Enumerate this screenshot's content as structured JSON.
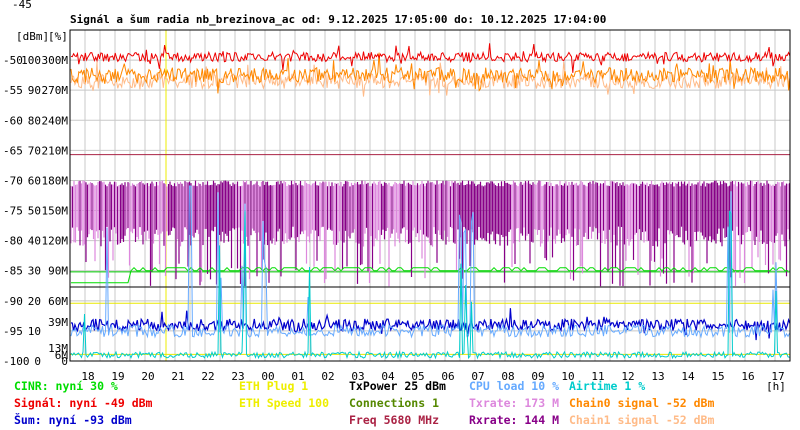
{
  "chart_data": {
    "type": "line",
    "title": "Signál a šum radia nb_brezinova_ac od: 9.12.2025 17:05:00 do: 10.12.2025 17:04:00",
    "unit_labels": [
      "[dBm]",
      "[%]"
    ],
    "x_unit": "[h]",
    "x_ticks": [
      "18",
      "19",
      "20",
      "21",
      "22",
      "23",
      "00",
      "01",
      "02",
      "03",
      "04",
      "05",
      "06",
      "07",
      "08",
      "09",
      "10",
      "11",
      "12",
      "13",
      "14",
      "15",
      "16",
      "17"
    ],
    "y_dbm_ticks": [
      "-45",
      "-50",
      "-55",
      "-60",
      "-65",
      "-70",
      "-75",
      "-80",
      "-85",
      "-90",
      "-95",
      "-100"
    ],
    "y_pct_ticks": [
      "",
      "100",
      "90",
      "80",
      "70",
      "60",
      "50",
      "40",
      "30",
      "20",
      "10",
      "0"
    ],
    "y_rate_ticks": [
      "",
      "300M",
      "270M",
      "240M",
      "210M",
      "180M",
      "150M",
      "120M",
      "90M",
      "60M",
      "",
      "0"
    ],
    "y_rate_colored": [
      {
        "label": "39M",
        "color": "#dd88dd",
        "value": 39
      },
      {
        "label": "13M",
        "color": "#ffaadd",
        "value": 13
      },
      {
        "label": "6M",
        "color": "#880088",
        "value": 6
      }
    ],
    "ylim_dbm": [
      -100,
      -45
    ],
    "grid": true,
    "reference_lines": [
      {
        "value": -65.7,
        "color": "#aa2244"
      },
      {
        "value": -85.2,
        "color": "#00cc00"
      },
      {
        "value": -87.7,
        "color": "#000000"
      },
      {
        "value": -90.4,
        "color": "#e8e800"
      },
      {
        "value": -98.9,
        "color": "#e8e800"
      }
    ],
    "marker_hour": 20.2,
    "series": [
      {
        "name": "Signál",
        "color": "#ee0000",
        "approx_level_dbm": -49.5
      },
      {
        "name": "Chain0 signal",
        "color": "#ff8800",
        "approx_level_dbm": -52
      },
      {
        "name": "Chain1 signal",
        "color": "#ffbb88",
        "approx_level_dbm": -52
      },
      {
        "name": "Txrate",
        "color": "#dd88dd",
        "approx_level_mbps": 150
      },
      {
        "name": "Rxrate",
        "color": "#880088",
        "approx_level_mbps": 144
      },
      {
        "name": "Šum",
        "color": "#0000cc",
        "approx_level_dbm": -93
      },
      {
        "name": "CINR",
        "color": "#00dd00",
        "approx_level_pct": 30
      },
      {
        "name": "CPU load",
        "color": "#66aaff",
        "approx_level_pct": 10
      },
      {
        "name": "Airtime",
        "color": "#00cccc",
        "approx_level_pct": 1
      }
    ]
  },
  "legend": [
    {
      "text": "CINR: nyní 30 %",
      "color": "#00dd00",
      "col": 0,
      "row": 0
    },
    {
      "text": "Signál: nyní -49 dBm",
      "color": "#ee0000",
      "col": 0,
      "row": 1
    },
    {
      "text": "Šum: nyní -93 dBm",
      "color": "#0000cc",
      "col": 0,
      "row": 2
    },
    {
      "text": "ETH Plug 1",
      "color": "#eeee00",
      "col": 1,
      "row": 0
    },
    {
      "text": "ETH Speed 100",
      "color": "#eeee00",
      "col": 1,
      "row": 1
    },
    {
      "text": "TxPower 25 dBm",
      "color": "#000000",
      "col": 2,
      "row": 0
    },
    {
      "text": "Connections 1",
      "color": "#558800",
      "col": 2,
      "row": 1
    },
    {
      "text": "Freq 5680 MHz",
      "color": "#aa2244",
      "col": 2,
      "row": 2
    },
    {
      "text": "CPU load 10 %",
      "color": "#66aaff",
      "col": 3,
      "row": 0
    },
    {
      "text": "Txrate: 173 M",
      "color": "#dd88dd",
      "col": 3,
      "row": 1
    },
    {
      "text": "Rxrate: 144 M",
      "color": "#880088",
      "col": 3,
      "row": 2
    },
    {
      "text": "Airtime 1 %",
      "color": "#00cccc",
      "col": 4,
      "row": 0
    },
    {
      "text": "Chain0 signal -52 dBm",
      "color": "#ff8800",
      "col": 4,
      "row": 1
    },
    {
      "text": "Chain1 signal -52 dBm",
      "color": "#ffbb88",
      "col": 4,
      "row": 2
    }
  ]
}
